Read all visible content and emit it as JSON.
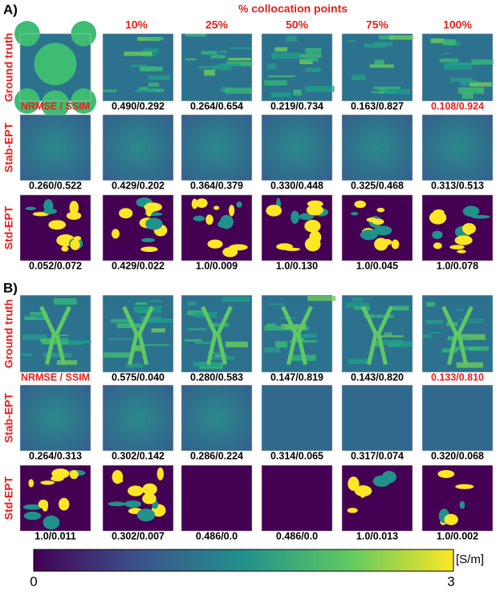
{
  "header": "% collocation points",
  "columns": [
    "10%",
    "25%",
    "50%",
    "75%",
    "100%"
  ],
  "panels": [
    {
      "label": "A)",
      "rows": [
        {
          "label": "Ground truth",
          "captions": [
            "NRMSE / SSIM",
            "0.490/0.292",
            "0.264/0.654",
            "0.219/0.734",
            "0.163/0.827",
            "0.108/0.924"
          ]
        },
        {
          "label": "Stab-EPT",
          "captions": [
            "0.260/0.522",
            "0.429/0.202",
            "0.364/0.379",
            "0.330/0.448",
            "0.325/0.468",
            "0.313/0.513"
          ]
        },
        {
          "label": "Std-EPT",
          "captions": [
            "0.052/0.072",
            "0.429/0.022",
            "1.0/0.009",
            "1.0/0.130",
            "1.0/0.045",
            "1.0/0.078"
          ]
        }
      ]
    },
    {
      "label": "B)",
      "rows": [
        {
          "label": "Ground truth",
          "captions": [
            "NRMSE / SSIM",
            "0.575/0.040",
            "0.280/0.583",
            "0.147/0.819",
            "0.143/0.820",
            "0.133/0.810"
          ]
        },
        {
          "label": "Stab-EPT",
          "captions": [
            "0.264/0.313",
            "0.302/0.142",
            "0.286/0.224",
            "0.314/0.065",
            "0.317/0.074",
            "0.320/0.068"
          ]
        },
        {
          "label": "Std-EPT",
          "captions": [
            "1.0/0.011",
            "0.302/0.007",
            "0.486/0.0",
            "0.486/0.0",
            "1.0/0.013",
            "1.0/0.002"
          ]
        }
      ]
    }
  ],
  "colorbar": {
    "unit": "[S/m]",
    "min_label": "0",
    "max_label": "3"
  }
}
